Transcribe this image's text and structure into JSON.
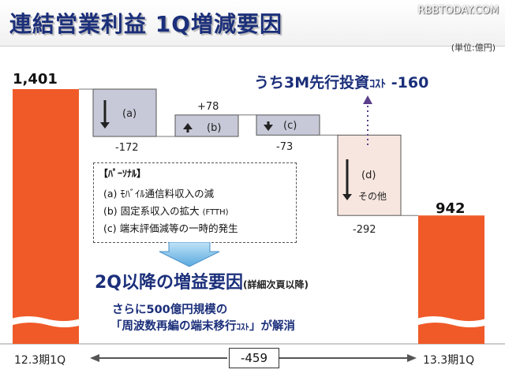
{
  "title": "連結営業利益 1Q増減要因",
  "watermark": "RBBTODAY.COM",
  "unit": "(単位:億円)",
  "colors": {
    "total_bar": "#f05a28",
    "step_bar": "#c7c9d8",
    "other_bar": "#f7e6df",
    "accent": "#1b2f7a"
  },
  "chart_data": {
    "type": "bar",
    "categories": [
      "12.3期1Q",
      "(a)",
      "(b)",
      "(c)",
      "(d)",
      "13.3期1Q"
    ],
    "values": [
      1401,
      -172,
      78,
      -73,
      -292,
      942
    ],
    "data_labels": [
      "1,401",
      "-172",
      "+78",
      "-73",
      "-292",
      "942"
    ],
    "step_names": [
      "",
      "(a)",
      "(b)",
      "(c)",
      "(d)",
      ""
    ],
    "other_label": "その他",
    "difference_label": "-459"
  },
  "investment_callout": {
    "main": "うち3M先行投資",
    "kata": "ｺｽﾄ",
    "value": "-160"
  },
  "personal_box": {
    "heading": "【ﾊﾟｰｿﾅﾙ】",
    "lines": [
      {
        "text": "(a) ﾓﾊﾞｲﾙ通信料収入の減",
        "small": ""
      },
      {
        "text": "(b) 固定系収入の拡大 ",
        "small": "(FTTH)"
      },
      {
        "text": "(c) 端末評価減等の一時的発生",
        "small": ""
      }
    ]
  },
  "q2_heading": {
    "main": "2Q以降の増益要因",
    "sub": "(詳細次頁以降)"
  },
  "note_line1": "さらに500億円規模の",
  "note_line2": {
    "before": "「周波数再編の端末移行",
    "kata": "ｺｽﾄ",
    "after": "」が解消"
  }
}
